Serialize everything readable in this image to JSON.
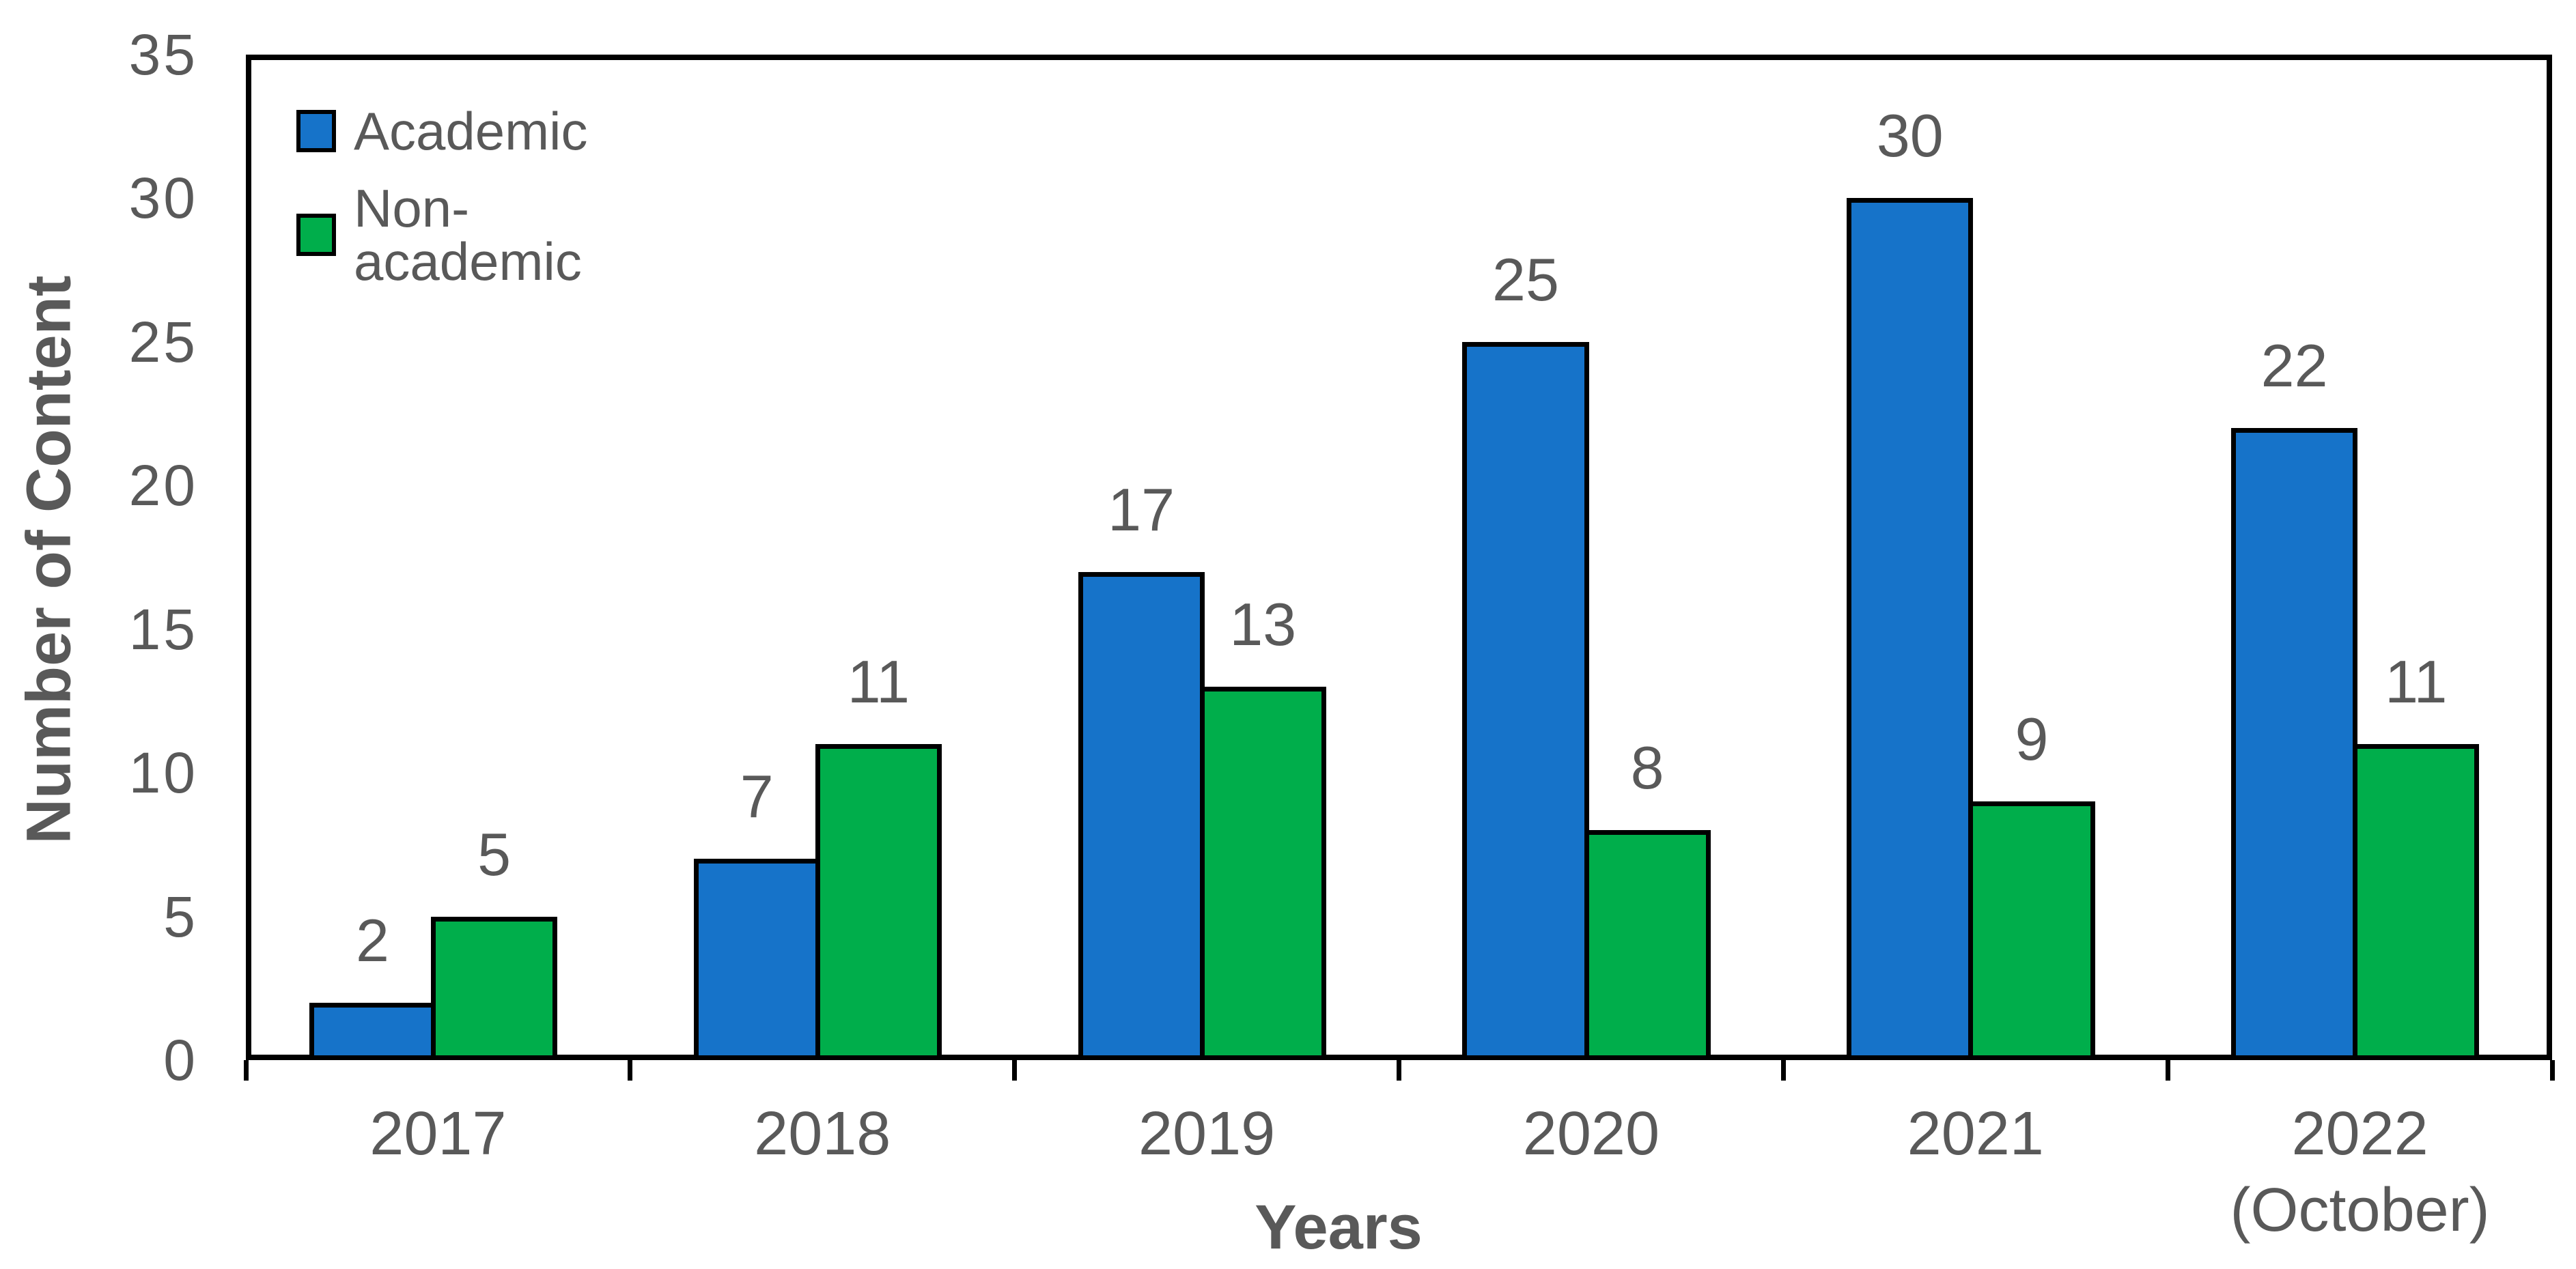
{
  "chart_data": {
    "type": "bar",
    "title": "",
    "xlabel": "Years",
    "ylabel": "Number of Content",
    "categories": [
      "2017",
      "2018",
      "2019",
      "2020",
      "2021",
      "2022\n(October)"
    ],
    "series": [
      {
        "name": "Academic",
        "color": "#1673C9",
        "values": [
          2,
          7,
          17,
          25,
          30,
          22
        ]
      },
      {
        "name": "Non-academic",
        "color": "#00AE4B",
        "values": [
          5,
          11,
          13,
          8,
          9,
          11
        ]
      }
    ],
    "ylim": [
      0,
      35
    ],
    "ytick_step": 5,
    "grid": false,
    "legend_position": "inside-top-left",
    "value_labels": true,
    "colors": {
      "text": "#595959",
      "axis": "#000000",
      "bar_outline": "#000000",
      "background": "#FFFFFF"
    }
  }
}
